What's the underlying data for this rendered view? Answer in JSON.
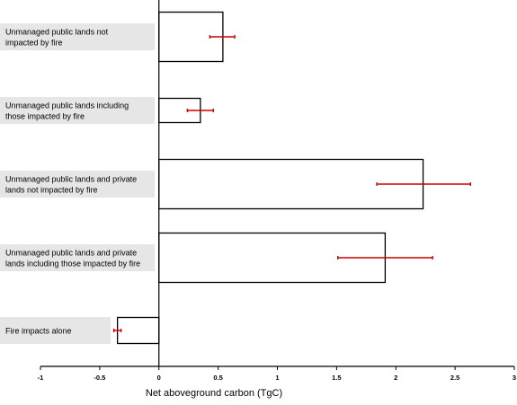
{
  "chart_data": {
    "type": "bar",
    "orientation": "horizontal",
    "categories": [
      [
        "Unmanaged public lands not",
        "impacted by fire"
      ],
      [
        "Unmanaged public lands including",
        "those impacted by fire"
      ],
      [
        "Unmanaged public lands and private",
        "lands not impacted by fire"
      ],
      [
        "Unmanaged public lands and private",
        "lands including those impacted by fire"
      ],
      [
        "Fire impacts alone"
      ]
    ],
    "values": [
      0.54,
      0.35,
      2.23,
      1.91,
      -0.35
    ],
    "error_low": [
      0.43,
      0.24,
      1.84,
      1.51,
      -0.38
    ],
    "error_high": [
      0.64,
      0.46,
      2.63,
      2.31,
      -0.32
    ],
    "xlabel": "Net aboveground carbon (TgC)",
    "ylabel": "",
    "title": "",
    "xlim": [
      -1,
      3
    ],
    "xticks": [
      -1,
      -0.5,
      0,
      0.5,
      1,
      1.5,
      2,
      2.5,
      3
    ],
    "xtick_labels": [
      "-1",
      "-0.5",
      "0",
      "0.5",
      "1",
      "1.5",
      "2",
      "2.5",
      "3"
    ],
    "grid": false,
    "legend": "none",
    "bar_fill": "#ffffff",
    "bar_edge": "#000000",
    "error_color": "#cc0000",
    "label_background": "#e6e6e6"
  }
}
